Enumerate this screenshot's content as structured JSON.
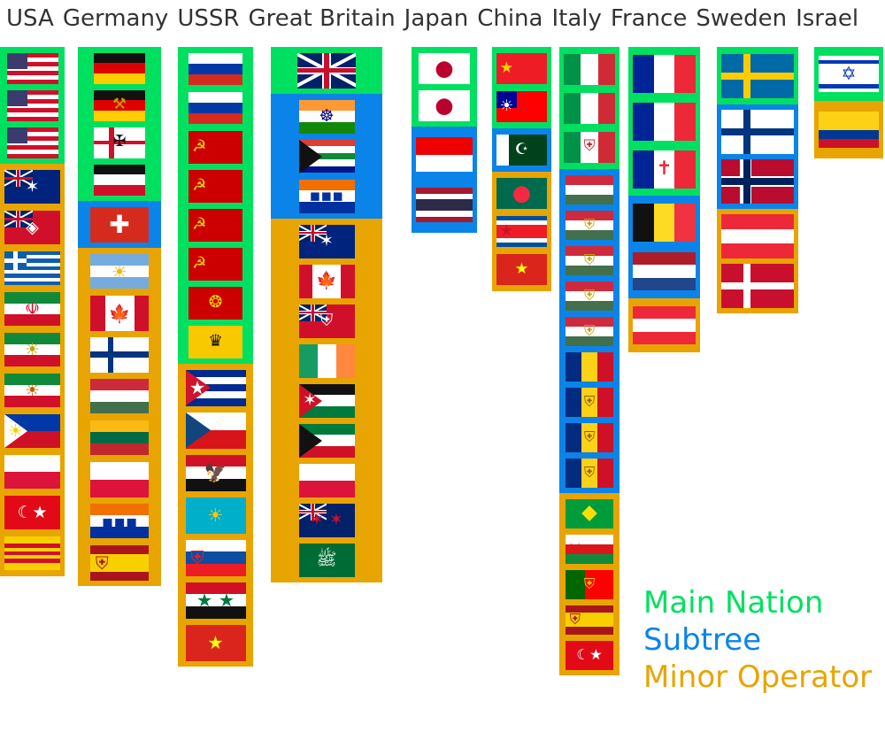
{
  "colors": {
    "main": "#00e060",
    "subtree": "#0a84e8",
    "minor": "#e8a400"
  },
  "legend": [
    {
      "label": "Main Nation",
      "category": "main"
    },
    {
      "label": "Subtree",
      "category": "subtree"
    },
    {
      "label": "Minor Operator",
      "category": "minor"
    }
  ],
  "columns": [
    {
      "name": "USA",
      "segments": [
        {
          "category": "main",
          "flags": [
            "usa",
            "usa",
            "usa"
          ]
        },
        {
          "category": "minor",
          "flags": [
            "australia",
            "rhodesia",
            "greece",
            "iran",
            "iran-pahlavi",
            "iran-lion",
            "philippines",
            "poland",
            "turkey",
            "south-vietnam"
          ]
        }
      ]
    },
    {
      "name": "Germany",
      "segments": [
        {
          "category": "main",
          "flags": [
            "germany",
            "east-germany",
            "reichskriegsflagge",
            "german-empire"
          ]
        },
        {
          "category": "subtree",
          "flags": [
            "switzerland"
          ]
        },
        {
          "category": "minor",
          "flags": [
            "argentina",
            "canada",
            "finland",
            "hungary",
            "lithuania",
            "poland",
            "south-africa-old",
            "spain"
          ]
        }
      ]
    },
    {
      "name": "USSR",
      "segments": [
        {
          "category": "main",
          "flags": [
            "russia",
            "russia",
            "ussr",
            "ussr",
            "ussr",
            "ussr",
            "rsfsr",
            "russian-empire"
          ]
        },
        {
          "category": "minor",
          "flags": [
            "cuba",
            "czechia",
            "egypt",
            "kazakhstan",
            "slovakia",
            "syria",
            "vietnam"
          ]
        }
      ]
    },
    {
      "name": "Great Britain",
      "segments": [
        {
          "category": "main",
          "flags": [
            "uk"
          ]
        },
        {
          "category": "subtree",
          "flags": [
            "india",
            "south-africa",
            "south-africa-old"
          ]
        },
        {
          "category": "minor",
          "flags": [
            "australia",
            "canada",
            "canada-red-ensign",
            "ireland",
            "jordan",
            "kuwait",
            "poland",
            "new-zealand",
            "saudi-arabia"
          ]
        }
      ]
    },
    {
      "name": "Japan",
      "segments": [
        {
          "category": "main",
          "flags": [
            "japan",
            "japan"
          ]
        },
        {
          "category": "subtree",
          "flags": [
            "indonesia",
            "thailand"
          ]
        }
      ]
    },
    {
      "name": "China",
      "segments": [
        {
          "category": "main",
          "flags": [
            "china",
            "taiwan"
          ]
        },
        {
          "category": "subtree",
          "flags": [
            "pakistan"
          ]
        },
        {
          "category": "minor",
          "flags": [
            "bangladesh",
            "north-korea",
            "vietnam"
          ]
        }
      ]
    },
    {
      "name": "Italy",
      "segments": [
        {
          "category": "main",
          "flags": [
            "italy",
            "italy",
            "kingdom-of-italy"
          ]
        },
        {
          "category": "subtree",
          "flags": [
            "hungary",
            "hungary-coat",
            "hungary-coat",
            "hungary-coat",
            "hungary-coat",
            "romania",
            "romania-coat",
            "romania-coat",
            "romania-coat"
          ]
        },
        {
          "category": "minor",
          "flags": [
            "brazil",
            "oman",
            "portugal",
            "spain",
            "turkey"
          ]
        }
      ]
    },
    {
      "name": "France",
      "segments": [
        {
          "category": "main",
          "flags": [
            "france",
            "france",
            "free-france"
          ]
        },
        {
          "category": "subtree",
          "flags": [
            "belgium",
            "netherlands"
          ]
        },
        {
          "category": "minor",
          "flags": [
            "austria"
          ]
        }
      ]
    },
    {
      "name": "Sweden",
      "segments": [
        {
          "category": "main",
          "flags": [
            "sweden"
          ]
        },
        {
          "category": "subtree",
          "flags": [
            "finland",
            "norway"
          ]
        },
        {
          "category": "minor",
          "flags": [
            "austria",
            "denmark"
          ]
        }
      ]
    },
    {
      "name": "Israel",
      "segments": [
        {
          "category": "main",
          "flags": [
            "israel"
          ]
        },
        {
          "category": "minor",
          "flags": [
            "colombia"
          ]
        }
      ]
    }
  ]
}
